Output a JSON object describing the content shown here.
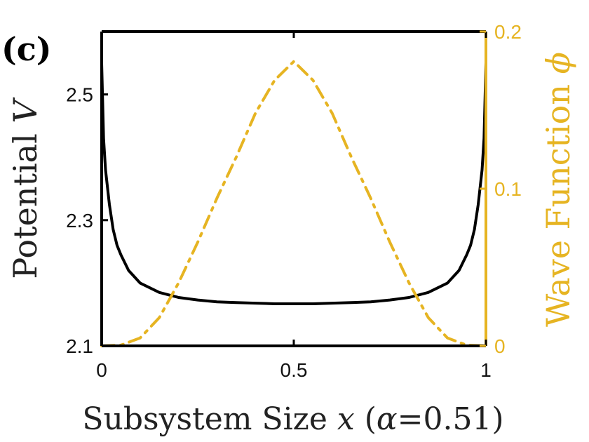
{
  "panel_label": "(c)",
  "chart_data": {
    "type": "line",
    "xlabel": "Subsystem Size x (α=0.51)",
    "xlabel_parts": {
      "prefix": "Subsystem Size ",
      "var": "x",
      "suffix_open": " (",
      "alpha": "α",
      "suffix_close": "=0.51)"
    },
    "ylabel_left": "Potential V",
    "ylabel_left_parts": {
      "text": "Potential ",
      "var": "V"
    },
    "ylabel_right": "Wave Function ϕ",
    "ylabel_right_parts": {
      "text": "Wave Function ",
      "var": "ϕ"
    },
    "xlim": [
      0,
      1
    ],
    "ylim_left": [
      2.1,
      2.6
    ],
    "ylim_right": [
      0,
      0.2
    ],
    "x_ticks": [
      "0",
      "0.5",
      "1"
    ],
    "y_left_ticks": [
      "2.1",
      "2.3",
      "2.5"
    ],
    "y_right_ticks": [
      "0",
      "0.1",
      "0.2"
    ],
    "colors": {
      "potential": "#000000",
      "wave": "#E6B422",
      "axis_left": "#000000",
      "axis_right": "#E6B422"
    },
    "series": [
      {
        "axis": "left",
        "style": "solid",
        "x": [
          0.0,
          0.005,
          0.01,
          0.02,
          0.03,
          0.04,
          0.05,
          0.07,
          0.1,
          0.15,
          0.2,
          0.25,
          0.3,
          0.35,
          0.4,
          0.45,
          0.5,
          0.55,
          0.6,
          0.65,
          0.7,
          0.75,
          0.8,
          0.85,
          0.9,
          0.93,
          0.95,
          0.96,
          0.97,
          0.98,
          0.99,
          0.995,
          1.0
        ],
        "y": [
          2.55,
          2.43,
          2.38,
          2.325,
          2.285,
          2.26,
          2.245,
          2.22,
          2.2,
          2.185,
          2.177,
          2.173,
          2.17,
          2.169,
          2.168,
          2.167,
          2.167,
          2.167,
          2.168,
          2.169,
          2.17,
          2.173,
          2.177,
          2.185,
          2.2,
          2.22,
          2.245,
          2.26,
          2.285,
          2.325,
          2.38,
          2.43,
          2.55
        ]
      },
      {
        "axis": "right",
        "style": "dashdot",
        "x": [
          0.0,
          0.05,
          0.1,
          0.15,
          0.2,
          0.25,
          0.3,
          0.35,
          0.4,
          0.45,
          0.5,
          0.55,
          0.6,
          0.65,
          0.7,
          0.75,
          0.8,
          0.85,
          0.9,
          0.95,
          1.0
        ],
        "y": [
          0.0,
          0.0005,
          0.005,
          0.018,
          0.04,
          0.066,
          0.094,
          0.12,
          0.148,
          0.169,
          0.181,
          0.169,
          0.148,
          0.12,
          0.094,
          0.066,
          0.04,
          0.018,
          0.005,
          0.0005,
          0.0
        ]
      }
    ]
  }
}
